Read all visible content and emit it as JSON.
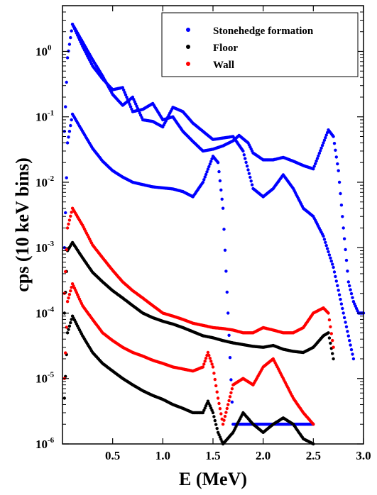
{
  "chart_data": {
    "type": "scatter",
    "xlabel": "E (MeV)",
    "ylabel": "cps (10 keV bins)",
    "xlim": [
      0.0,
      3.0
    ],
    "ylim": [
      1e-06,
      5
    ],
    "yscale": "log",
    "grid": false,
    "legend_position": "top-right",
    "x_ticks": [
      0.5,
      1.0,
      1.5,
      2.0,
      2.5,
      3.0
    ],
    "x_tick_labels": [
      "0.5",
      "1.0",
      "1.5",
      "2.0",
      "2.5",
      "3.0"
    ],
    "y_ticks": [
      1e-06,
      1e-05,
      0.0001,
      0.001,
      0.01,
      0.1,
      1
    ],
    "y_tick_labels": [
      {
        "base": "10",
        "exp": "-6"
      },
      {
        "base": "10",
        "exp": "-5"
      },
      {
        "base": "10",
        "exp": "-4"
      },
      {
        "base": "10",
        "exp": "-3"
      },
      {
        "base": "10",
        "exp": "-2"
      },
      {
        "base": "10",
        "exp": "-1"
      },
      {
        "base": "10",
        "exp": "0"
      }
    ],
    "legend": [
      {
        "label": "Stonehedge formation",
        "color": "#0000ff"
      },
      {
        "label": "Floor",
        "color": "#000000"
      },
      {
        "label": "Wall",
        "color": "#ff0000"
      }
    ],
    "series": [
      {
        "name": "Stonehedge formation",
        "color": "#0000ff",
        "x": [
          0.02,
          0.05,
          0.1,
          0.2,
          0.3,
          0.4,
          0.5,
          0.6,
          0.7,
          0.8,
          0.9,
          1.0,
          1.1,
          1.2,
          1.3,
          1.4,
          1.5,
          1.6,
          1.7,
          1.76,
          1.85,
          1.9,
          2.0,
          2.1,
          2.2,
          2.3,
          2.4,
          2.5,
          2.6,
          2.65,
          2.7,
          2.75,
          2.8,
          2.85,
          2.9,
          2.95,
          3.0
        ],
        "y": [
          0.06,
          0.8,
          2.6,
          1.2,
          0.6,
          0.38,
          0.26,
          0.28,
          0.12,
          0.13,
          0.16,
          0.09,
          0.1,
          0.06,
          0.042,
          0.03,
          0.032,
          0.036,
          0.043,
          0.052,
          0.04,
          0.028,
          0.022,
          0.022,
          0.024,
          0.021,
          0.018,
          0.016,
          0.04,
          0.063,
          0.05,
          0.015,
          0.002,
          0.0003,
          0.00015,
          0.0001,
          0.0001
        ]
      },
      {
        "name": "Stonehedge formation",
        "color": "#0000ff",
        "x": [
          0.02,
          0.05,
          0.1,
          0.2,
          0.3,
          0.4,
          0.5,
          0.6,
          0.7,
          0.8,
          0.9,
          1.0,
          1.1,
          1.2,
          1.3,
          1.4,
          1.5,
          1.55,
          1.6,
          1.65,
          1.7,
          1.8,
          1.9,
          2.0,
          2.1,
          2.2,
          2.3,
          2.4,
          2.5
        ],
        "y": [
          0.001,
          0.04,
          0.11,
          0.06,
          0.033,
          0.021,
          0.015,
          0.012,
          0.01,
          0.0092,
          0.0085,
          0.0082,
          0.0079,
          0.0072,
          0.006,
          0.01,
          0.025,
          0.02,
          0.004,
          0.0001,
          2e-06,
          2e-06,
          2e-06,
          2e-06,
          2e-06,
          2e-06,
          2e-06,
          2e-06,
          2e-06
        ]
      },
      {
        "name": "Stonehedge formation",
        "color": "#0000ff",
        "x": [
          0.1,
          0.2,
          0.3,
          0.4,
          0.5,
          0.6,
          0.7,
          0.8,
          0.9,
          1.0,
          1.1,
          1.2,
          1.3,
          1.5,
          1.7,
          1.8,
          1.9,
          2.0,
          2.1,
          2.2,
          2.3,
          2.4,
          2.5,
          2.6,
          2.7,
          2.8,
          2.9
        ],
        "y": [
          2.6,
          1.4,
          0.75,
          0.42,
          0.22,
          0.15,
          0.2,
          0.09,
          0.085,
          0.07,
          0.14,
          0.12,
          0.08,
          0.045,
          0.05,
          0.03,
          0.008,
          0.006,
          0.008,
          0.013,
          0.008,
          0.004,
          0.003,
          0.0015,
          0.0005,
          0.0001,
          2e-05
        ]
      },
      {
        "name": "Floor",
        "color": "#000000",
        "x": [
          0.02,
          0.05,
          0.1,
          0.2,
          0.3,
          0.4,
          0.5,
          0.6,
          0.7,
          0.8,
          0.9,
          1.0,
          1.1,
          1.2,
          1.3,
          1.4,
          1.5,
          1.6,
          1.7,
          1.8,
          1.9,
          2.0,
          2.1,
          2.2,
          2.3,
          2.4,
          2.5,
          2.6,
          2.65,
          2.7
        ],
        "y": [
          0.0001,
          0.0009,
          0.0012,
          0.0007,
          0.00042,
          0.0003,
          0.00022,
          0.00017,
          0.00013,
          0.0001,
          8.5e-05,
          7.5e-05,
          6.8e-05,
          6e-05,
          5.2e-05,
          4.5e-05,
          4.2e-05,
          3.8e-05,
          3.5e-05,
          3.3e-05,
          3.1e-05,
          3e-05,
          3.2e-05,
          2.8e-05,
          2.6e-05,
          2.5e-05,
          3e-05,
          4.5e-05,
          5e-05,
          2e-05
        ]
      },
      {
        "name": "Floor",
        "color": "#000000",
        "x": [
          0.02,
          0.05,
          0.1,
          0.2,
          0.3,
          0.4,
          0.5,
          0.6,
          0.7,
          0.8,
          0.9,
          1.0,
          1.1,
          1.2,
          1.3,
          1.4,
          1.45,
          1.5,
          1.55,
          1.6,
          1.7,
          1.8,
          1.9,
          2.0,
          2.1,
          2.2,
          2.3,
          2.4,
          2.5
        ],
        "y": [
          5e-06,
          5e-05,
          9e-05,
          4.5e-05,
          2.5e-05,
          1.7e-05,
          1.3e-05,
          1e-05,
          8e-06,
          6.5e-06,
          5.5e-06,
          4.8e-06,
          4e-06,
          3.5e-06,
          3e-06,
          3e-06,
          4.5e-06,
          3e-06,
          1.5e-06,
          1e-06,
          1.5e-06,
          3e-06,
          2e-06,
          1.5e-06,
          2e-06,
          2.5e-06,
          2e-06,
          1.2e-06,
          1e-06
        ]
      },
      {
        "name": "Wall",
        "color": "#ff0000",
        "x": [
          0.02,
          0.05,
          0.1,
          0.2,
          0.3,
          0.4,
          0.5,
          0.6,
          0.7,
          0.8,
          0.9,
          1.0,
          1.1,
          1.2,
          1.3,
          1.4,
          1.5,
          1.6,
          1.7,
          1.8,
          1.9,
          2.0,
          2.1,
          2.2,
          2.3,
          2.4,
          2.5,
          2.6,
          2.65,
          2.7
        ],
        "y": [
          0.0002,
          0.002,
          0.004,
          0.0022,
          0.0011,
          0.0007,
          0.00045,
          0.0003,
          0.00022,
          0.00017,
          0.00013,
          0.0001,
          9e-05,
          8e-05,
          7e-05,
          6.5e-05,
          6e-05,
          5.8e-05,
          5.5e-05,
          5e-05,
          5e-05,
          6e-05,
          5.5e-05,
          5e-05,
          5e-05,
          6e-05,
          0.0001,
          0.00012,
          0.0001,
          3e-05
        ]
      },
      {
        "name": "Wall",
        "color": "#ff0000",
        "x": [
          0.02,
          0.05,
          0.1,
          0.2,
          0.3,
          0.4,
          0.5,
          0.6,
          0.7,
          0.8,
          0.9,
          1.0,
          1.1,
          1.2,
          1.3,
          1.4,
          1.45,
          1.5,
          1.55,
          1.6,
          1.7,
          1.8,
          1.9,
          2.0,
          2.1,
          2.2,
          2.3,
          2.4,
          2.5
        ],
        "y": [
          1e-05,
          0.00015,
          0.00028,
          0.00013,
          8e-05,
          5e-05,
          3.8e-05,
          3e-05,
          2.5e-05,
          2.2e-05,
          1.9e-05,
          1.7e-05,
          1.5e-05,
          1.4e-05,
          1.3e-05,
          1.5e-05,
          2.5e-05,
          1.5e-05,
          5e-06,
          2e-06,
          8e-06,
          1e-05,
          8e-06,
          1.5e-05,
          2e-05,
          1e-05,
          5e-06,
          3e-06,
          2e-06
        ]
      }
    ]
  }
}
